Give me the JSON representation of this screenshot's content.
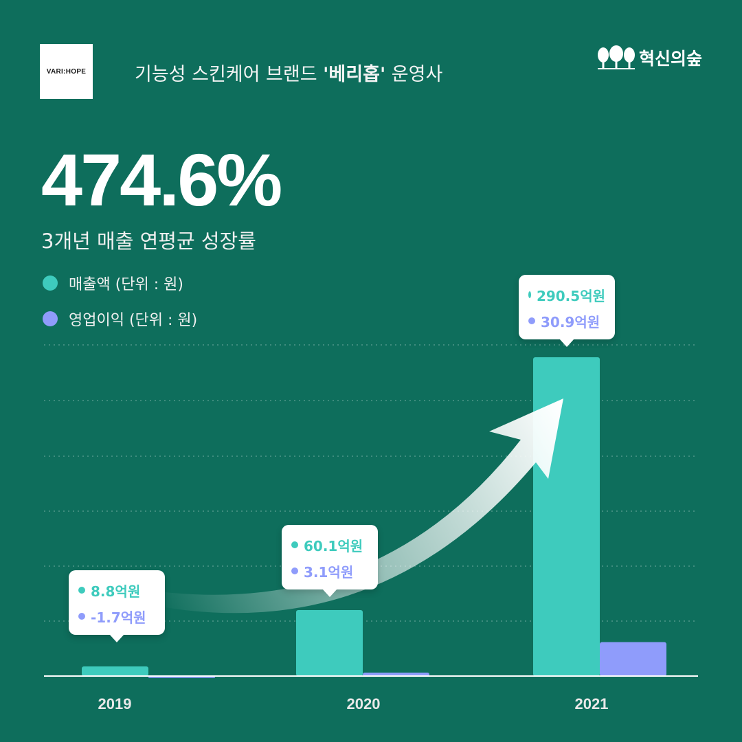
{
  "header": {
    "logo_text": "VARI:HOPE",
    "subtitle_prefix": "기능성 스킨케어 브랜드 ",
    "subtitle_bold": "'베리홉'",
    "subtitle_suffix": " 운영사",
    "brand_name": "혁신의숲"
  },
  "headline": {
    "value": "474.6%",
    "caption": "3개년 매출 연평균 성장률"
  },
  "colors": {
    "background": "#0e6e5c",
    "revenue": "#3ecbbd",
    "operating_profit": "#8f9cfb",
    "axis": "#ffffff"
  },
  "chart_data": {
    "type": "bar",
    "categories": [
      "2019",
      "2020",
      "2021"
    ],
    "series": [
      {
        "name": "매출액 (단위 : 원)",
        "values": [
          8.8,
          60.1,
          290.5
        ],
        "labels": [
          "8.8억원",
          "60.1억원",
          "290.5억원"
        ]
      },
      {
        "name": "영업이익 (단위 : 원)",
        "values": [
          -1.7,
          3.1,
          30.9
        ],
        "labels": [
          "-1.7억원",
          "3.1억원",
          "30.9억원"
        ]
      }
    ],
    "title": "",
    "xlabel": "",
    "ylabel": "",
    "legend_position": "top-left",
    "grid": true,
    "trend_arrow": true
  }
}
